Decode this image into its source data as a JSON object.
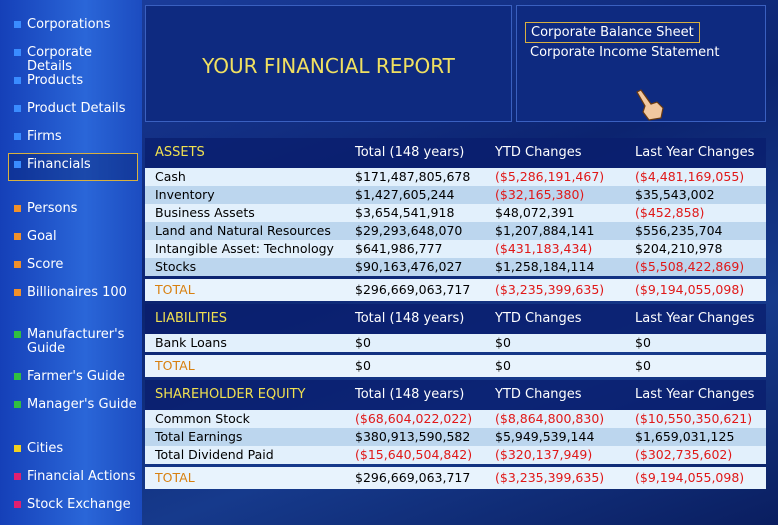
{
  "sidebar": {
    "groups": [
      {
        "items": [
          "Corporations",
          "Corporate Details",
          "Products",
          "Product Details",
          "Firms",
          "Financials"
        ]
      },
      {
        "items": [
          "Persons",
          "Goal",
          "Score",
          "Billionaires 100"
        ]
      },
      {
        "items": [
          "Manufacturer's Guide",
          "Farmer's Guide",
          "Manager's Guide"
        ]
      },
      {
        "items": [
          "Cities",
          "Financial Actions",
          "Stock Exchange"
        ]
      }
    ]
  },
  "header": {
    "title": "YOUR FINANCIAL REPORT",
    "reports": [
      "Corporate Balance Sheet",
      "Corporate Income Statement"
    ]
  },
  "table": {
    "sections": [
      {
        "headers": [
          "ASSETS",
          "Total (148 years)",
          "YTD Changes",
          "Last Year Changes"
        ],
        "rows": [
          [
            "Cash",
            "$171,487,805,678",
            "($5,286,191,467)",
            "($4,481,169,055)"
          ],
          [
            "Inventory",
            "$1,427,605,244",
            "($32,165,380)",
            "$35,543,002"
          ],
          [
            "Business Assets",
            "$3,654,541,918",
            "$48,072,391",
            "($452,858)"
          ],
          [
            "Land and Natural Resources",
            "$29,293,648,070",
            "$1,207,884,141",
            "$556,235,704"
          ],
          [
            "Intangible Asset: Technology",
            "$641,986,777",
            "($431,183,434)",
            "$204,210,978"
          ],
          [
            "Stocks",
            "$90,163,476,027",
            "$1,258,184,114",
            "($5,508,422,869)"
          ]
        ],
        "total": [
          "TOTAL",
          "$296,669,063,717",
          "($3,235,399,635)",
          "($9,194,055,098)"
        ]
      },
      {
        "headers": [
          "LIABILITIES",
          "Total (148 years)",
          "YTD Changes",
          "Last Year Changes"
        ],
        "rows": [
          [
            "Bank Loans",
            "$0",
            "$0",
            "$0"
          ]
        ],
        "total": [
          "TOTAL",
          "$0",
          "$0",
          "$0"
        ]
      },
      {
        "headers": [
          "SHAREHOLDER EQUITY",
          "Total (148 years)",
          "YTD Changes",
          "Last Year Changes"
        ],
        "rows": [
          [
            "Common Stock",
            "($68,604,022,022)",
            "($8,864,800,830)",
            "($10,550,350,621)"
          ],
          [
            "Total Earnings",
            "$380,913,590,582",
            "$5,949,539,144",
            "$1,659,031,125"
          ],
          [
            "Total Dividend Paid",
            "($15,640,504,842)",
            "($320,137,949)",
            "($302,735,602)"
          ]
        ],
        "total": [
          "TOTAL",
          "$296,669,063,717",
          "($3,235,399,635)",
          "($9,194,055,098)"
        ]
      }
    ]
  }
}
